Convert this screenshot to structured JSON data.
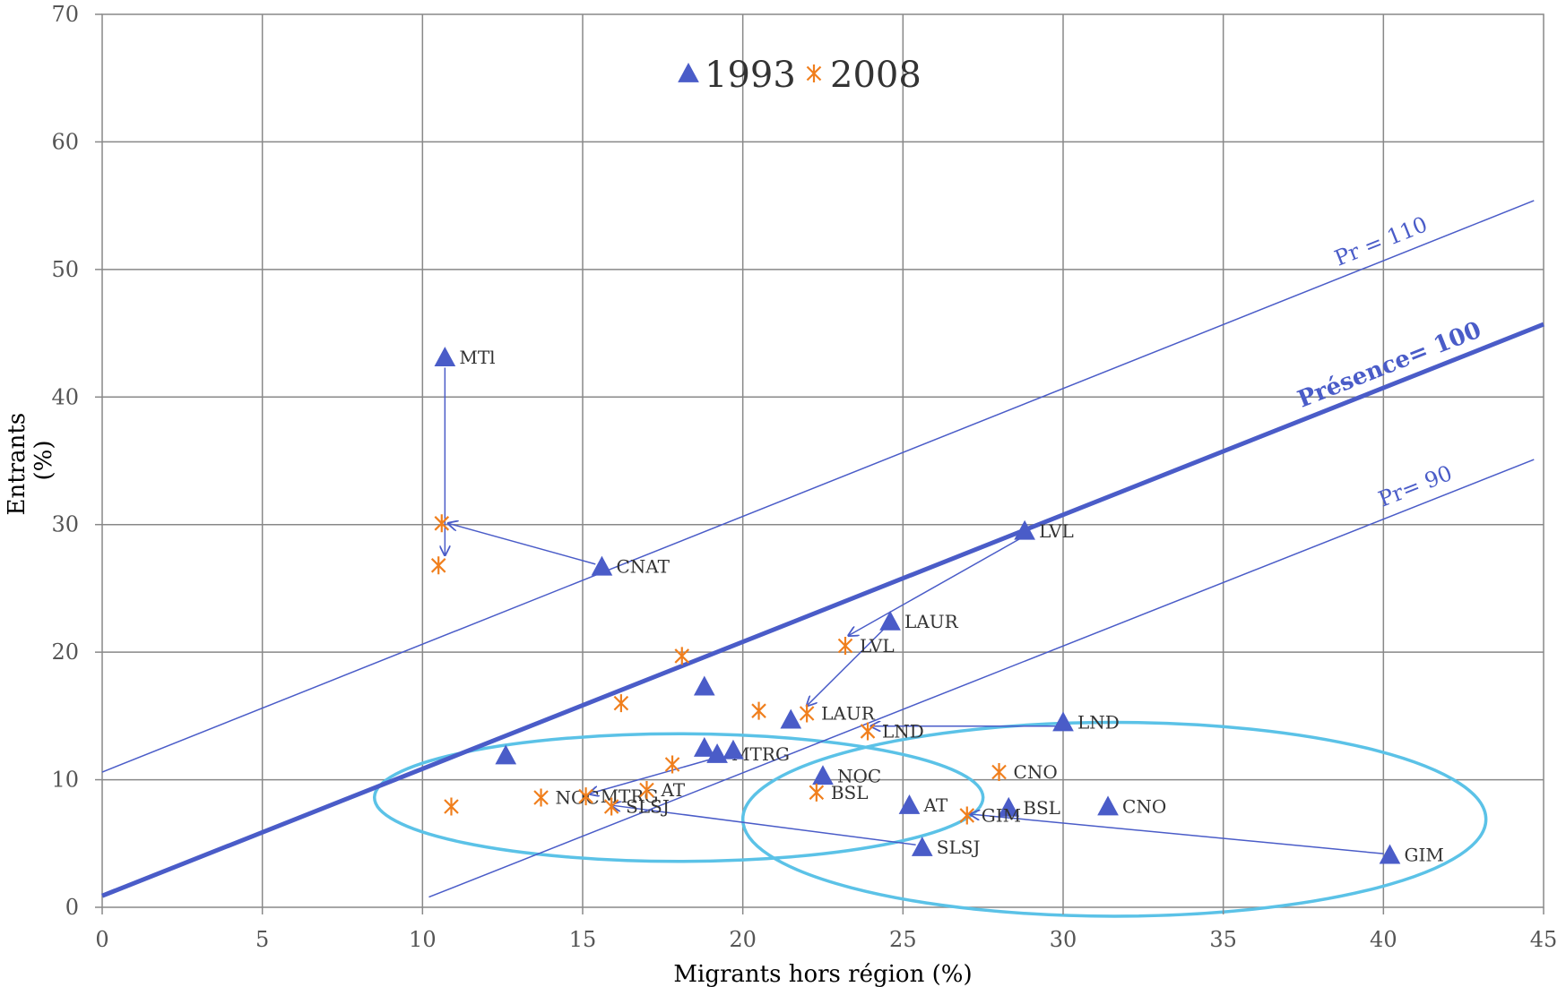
{
  "chart_data": {
    "type": "scatter",
    "xlabel": "Migrants hors région (%)",
    "ylabel": "Entrants (%)",
    "xlim": [
      0,
      45
    ],
    "ylim": [
      0,
      70
    ],
    "x_ticks": [
      0,
      5,
      10,
      15,
      20,
      25,
      30,
      35,
      40,
      45
    ],
    "y_ticks": [
      0,
      10,
      20,
      30,
      40,
      50,
      60,
      70
    ],
    "grid": true,
    "legend_placement": "top-center",
    "series": [
      {
        "name": "1993",
        "marker": "triangle",
        "color": "#4a5cc8",
        "points": [
          {
            "x": 10.7,
            "y": 43.1,
            "label": "MTl"
          },
          {
            "x": 15.6,
            "y": 26.7,
            "label": "CNAT"
          },
          {
            "x": 28.8,
            "y": 29.5,
            "label": "LVL"
          },
          {
            "x": 24.6,
            "y": 22.4,
            "label": "LAUR"
          },
          {
            "x": 30.0,
            "y": 14.5,
            "label": "LND"
          },
          {
            "x": 19.2,
            "y": 12.0,
            "label": "MTRG"
          },
          {
            "x": 22.5,
            "y": 10.3,
            "label": "NOC"
          },
          {
            "x": 25.2,
            "y": 8.0,
            "label": "AT"
          },
          {
            "x": 28.3,
            "y": 7.8,
            "label": "BSL"
          },
          {
            "x": 31.4,
            "y": 7.9,
            "label": "CNO"
          },
          {
            "x": 25.6,
            "y": 4.7,
            "label": "SLSJ"
          },
          {
            "x": 40.2,
            "y": 4.1,
            "label": "GIM"
          },
          {
            "x": 12.6,
            "y": 11.9,
            "label": ""
          },
          {
            "x": 18.8,
            "y": 17.3,
            "label": ""
          },
          {
            "x": 18.8,
            "y": 12.5,
            "label": ""
          },
          {
            "x": 19.7,
            "y": 12.3,
            "label": ""
          },
          {
            "x": 21.5,
            "y": 14.7,
            "label": ""
          }
        ]
      },
      {
        "name": "2008",
        "marker": "asterisk",
        "color": "#f07f1d",
        "points": [
          {
            "x": 10.6,
            "y": 30.1,
            "label": ""
          },
          {
            "x": 10.5,
            "y": 26.8,
            "label": ""
          },
          {
            "x": 10.9,
            "y": 7.9,
            "label": ""
          },
          {
            "x": 13.7,
            "y": 8.6,
            "label": "NOC"
          },
          {
            "x": 15.1,
            "y": 8.7,
            "label": "MTRG"
          },
          {
            "x": 15.9,
            "y": 7.9,
            "label": "SLSJ"
          },
          {
            "x": 16.2,
            "y": 16.0,
            "label": ""
          },
          {
            "x": 17.0,
            "y": 9.2,
            "label": "AT"
          },
          {
            "x": 17.8,
            "y": 11.2,
            "label": ""
          },
          {
            "x": 18.1,
            "y": 19.7,
            "label": ""
          },
          {
            "x": 20.5,
            "y": 15.4,
            "label": ""
          },
          {
            "x": 22.0,
            "y": 15.2,
            "label": "LAUR"
          },
          {
            "x": 22.3,
            "y": 9.0,
            "label": "BSL"
          },
          {
            "x": 23.2,
            "y": 20.5,
            "label": "LVL"
          },
          {
            "x": 23.9,
            "y": 13.8,
            "label": "LND"
          },
          {
            "x": 27.0,
            "y": 7.2,
            "label": "GIM"
          },
          {
            "x": 28.0,
            "y": 10.6,
            "label": "CNO"
          }
        ]
      }
    ],
    "reference_lines": [
      {
        "label": "Pr = 110",
        "from": [
          0,
          10.6
        ],
        "to": [
          44.7,
          55.4
        ],
        "style": "thin"
      },
      {
        "label": "Présence= 100",
        "from": [
          0,
          0.9
        ],
        "to": [
          45,
          45.7
        ],
        "style": "thick"
      },
      {
        "label": "Pr= 90",
        "from": [
          10.2,
          0.8
        ],
        "to": [
          44.7,
          35.1
        ],
        "style": "thin"
      }
    ],
    "arrows": [
      {
        "from": [
          10.7,
          42.3
        ],
        "to": [
          10.7,
          27.6
        ]
      },
      {
        "from": [
          15.4,
          26.9
        ],
        "to": [
          10.8,
          30.1
        ]
      },
      {
        "from": [
          28.8,
          29.1
        ],
        "to": [
          23.3,
          21.3
        ]
      },
      {
        "from": [
          24.4,
          21.8
        ],
        "to": [
          22.0,
          15.8
        ]
      },
      {
        "from": [
          29.8,
          14.2
        ],
        "to": [
          24.0,
          14.2
        ]
      },
      {
        "from": [
          19.0,
          11.6
        ],
        "to": [
          15.2,
          8.9
        ]
      },
      {
        "from": [
          40.0,
          4.2
        ],
        "to": [
          27.1,
          7.3
        ]
      },
      {
        "from": [
          25.4,
          4.9
        ],
        "to": [
          15.9,
          8.0
        ]
      }
    ],
    "ellipses": [
      {
        "cx": 18.0,
        "cy": 8.6,
        "rx": 9.5,
        "ry": 5.0
      },
      {
        "cx": 31.6,
        "cy": 6.9,
        "rx": 11.6,
        "ry": 7.6
      }
    ]
  }
}
